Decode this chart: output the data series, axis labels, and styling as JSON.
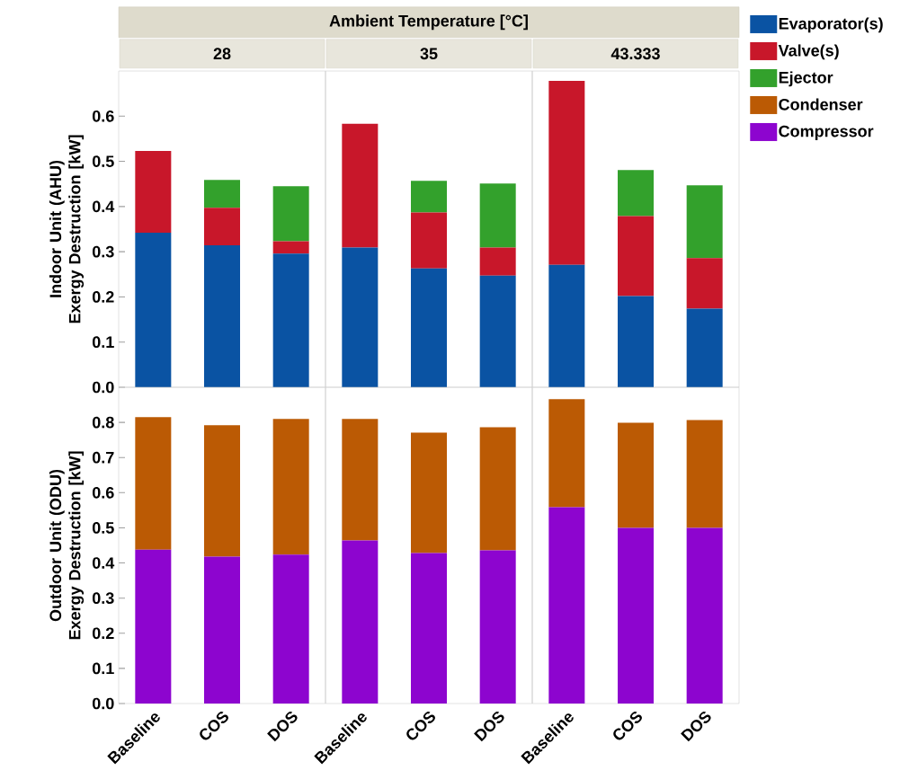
{
  "chart_data": [
    {
      "type": "bar",
      "stacked": true,
      "title": "Ambient Temperature [°C]",
      "annotations": [
        "28",
        "35",
        "43.333"
      ],
      "ylabel": "Indoor Unit (AHU) Exergy Destruction [kW]",
      "tick_labels": "y",
      "legend": "right",
      "categories": [
        null,
        null,
        null,
        null,
        null,
        null,
        null,
        null,
        null
      ],
      "ylim": [
        0,
        0.7
      ],
      "yticks": [
        {
          "value": 0,
          "label": "0.0"
        },
        0.1,
        0.2,
        0.3,
        0.4,
        0.5,
        0.6
      ],
      "series": [
        {
          "name": "Evaporator(s)",
          "color": "#0a53a3",
          "values": [
            0.342,
            0.314,
            0.296,
            0.309,
            0.263,
            0.247,
            0.271,
            0.202,
            0.174
          ]
        },
        {
          "name": "Valve(s)",
          "color": "#c8172a",
          "values": [
            0.181,
            0.083,
            0.027,
            0.274,
            0.124,
            0.062,
            0.407,
            0.177,
            0.112
          ]
        },
        {
          "name": "Ejector",
          "color": "#33a12c",
          "values": [
            null,
            0.062,
            0.122,
            null,
            0.07,
            0.142,
            null,
            0.102,
            0.161
          ]
        }
      ]
    },
    {
      "type": "bar",
      "stacked": true,
      "ylabel": "Outdoor Unit (ODU) Exergy Destruction [kW]",
      "legend": "right",
      "categories": [
        "Baseline",
        "COS",
        "DOS",
        "Baseline",
        "COS",
        "DOS",
        "Baseline",
        "COS",
        "DOS"
      ],
      "ylim": [
        0,
        0.9
      ],
      "yticks": [
        {
          "value": 0,
          "label": "0.0"
        },
        0.1,
        0.2,
        0.3,
        0.4,
        0.5,
        0.6,
        0.7,
        0.8
      ],
      "series": [
        {
          "name": "Compressor",
          "color": "#8d05cf",
          "values": [
            0.438,
            0.418,
            0.424,
            0.464,
            0.428,
            0.436,
            0.559,
            0.5,
            0.5
          ]
        },
        {
          "name": "Condenser",
          "color": "#bb5a04",
          "values": [
            0.377,
            0.374,
            0.386,
            0.346,
            0.343,
            0.35,
            0.307,
            0.299,
            0.307
          ]
        }
      ]
    }
  ]
}
